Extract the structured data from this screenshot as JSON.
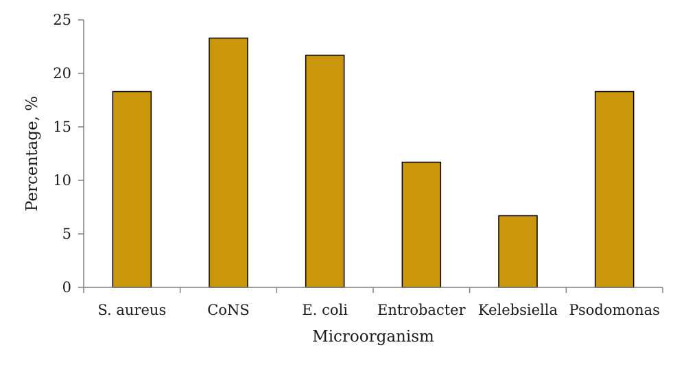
{
  "chart_data": {
    "type": "bar",
    "categories": [
      "S. aureus",
      "CoNS",
      "E. coli",
      "Entrobacter",
      "Kelebsiella",
      "Psodomonas"
    ],
    "values": [
      18.3,
      23.3,
      21.7,
      11.7,
      6.7,
      18.3
    ],
    "xlabel": "Microorganism",
    "ylabel": "Percentage, %",
    "ylim": [
      0,
      25
    ],
    "yticks": [
      0,
      5,
      10,
      15,
      20,
      25
    ],
    "grid": false,
    "legend": "none",
    "bar_color": "#c9960c",
    "bar_edge_color": "#000000"
  }
}
